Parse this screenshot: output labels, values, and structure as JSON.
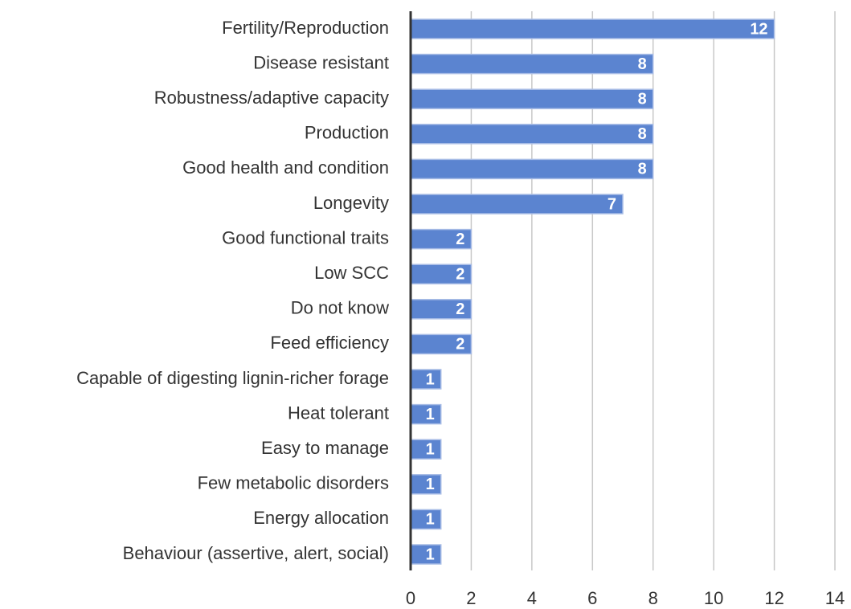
{
  "chart_data": {
    "type": "bar",
    "orientation": "horizontal",
    "categories": [
      "Fertility/Reproduction",
      "Disease resistant",
      "Robustness/adaptive capacity",
      "Production",
      "Good health and condition",
      "Longevity",
      "Good functional traits",
      "Low SCC",
      "Do not know",
      "Feed efficiency",
      "Capable of digesting lignin-richer forage",
      "Heat tolerant",
      "Easy to manage",
      "Few metabolic disorders",
      "Energy allocation",
      "Behaviour (assertive, alert, social)"
    ],
    "values": [
      12,
      8,
      8,
      8,
      8,
      7,
      2,
      2,
      2,
      2,
      1,
      1,
      1,
      1,
      1,
      1
    ],
    "color": "#5b84d0",
    "xlim": [
      0,
      14
    ],
    "xticks": [
      0,
      2,
      4,
      6,
      8,
      10,
      12,
      14
    ],
    "grid": true
  }
}
